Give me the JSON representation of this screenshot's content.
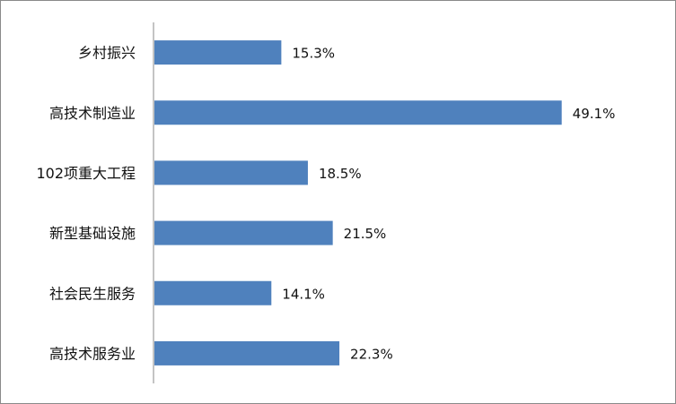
{
  "chart_data": {
    "type": "bar",
    "orientation": "horizontal",
    "title": "",
    "xlabel": "",
    "ylabel": "",
    "grid": false,
    "legend": "none",
    "bar_color": "#4f81bd",
    "xlim": [
      0,
      60
    ],
    "categories": [
      "乡村振兴",
      "高技术制造业",
      "102项重大工程",
      "新型基础设施",
      "社会民生服务",
      "高技术服务业"
    ],
    "values": [
      15.3,
      49.1,
      18.5,
      21.5,
      14.1,
      22.3
    ],
    "value_labels": [
      "15.3%",
      "49.1%",
      "18.5%",
      "21.5%",
      "14.1%",
      "22.3%"
    ]
  }
}
